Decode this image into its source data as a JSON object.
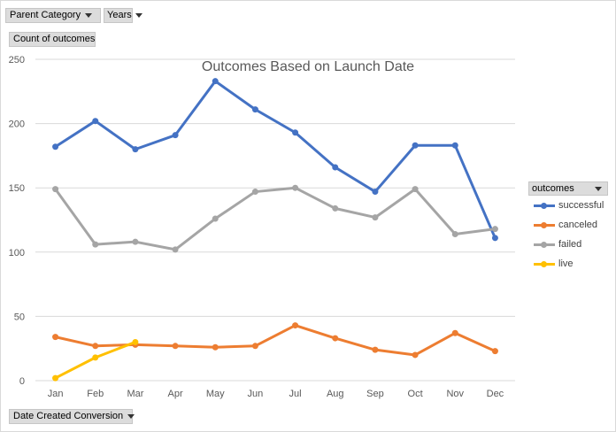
{
  "filters": {
    "parent_category": "Parent Category",
    "years": "Years"
  },
  "value_button": "Count of outcomes",
  "axis_button": "Date Created Conversion",
  "legend_title": "outcomes",
  "colors": {
    "successful": "#4472C4",
    "canceled": "#ED7D31",
    "failed": "#A5A5A5",
    "live": "#FFC000",
    "grid": "#d9d9d9",
    "axis_text": "#595959"
  },
  "chart_data": {
    "type": "line",
    "title": "Outcomes Based on Launch Date",
    "xlabel": "",
    "ylabel": "",
    "categories": [
      "Jan",
      "Feb",
      "Mar",
      "Apr",
      "May",
      "Jun",
      "Jul",
      "Aug",
      "Sep",
      "Oct",
      "Nov",
      "Dec"
    ],
    "ylim": [
      0,
      250
    ],
    "yticks": [
      0,
      50,
      100,
      150,
      200,
      250
    ],
    "grid": true,
    "legend": "right",
    "series": [
      {
        "name": "successful",
        "values": [
          182,
          202,
          180,
          191,
          233,
          211,
          193,
          166,
          147,
          183,
          183,
          111
        ]
      },
      {
        "name": "canceled",
        "values": [
          34,
          27,
          28,
          27,
          26,
          27,
          43,
          33,
          24,
          20,
          37,
          23
        ]
      },
      {
        "name": "failed",
        "values": [
          149,
          106,
          108,
          102,
          126,
          147,
          150,
          134,
          127,
          149,
          114,
          118
        ]
      },
      {
        "name": "live",
        "values": [
          2,
          18,
          30,
          null,
          null,
          null,
          null,
          null,
          null,
          null,
          null,
          null
        ]
      }
    ]
  }
}
